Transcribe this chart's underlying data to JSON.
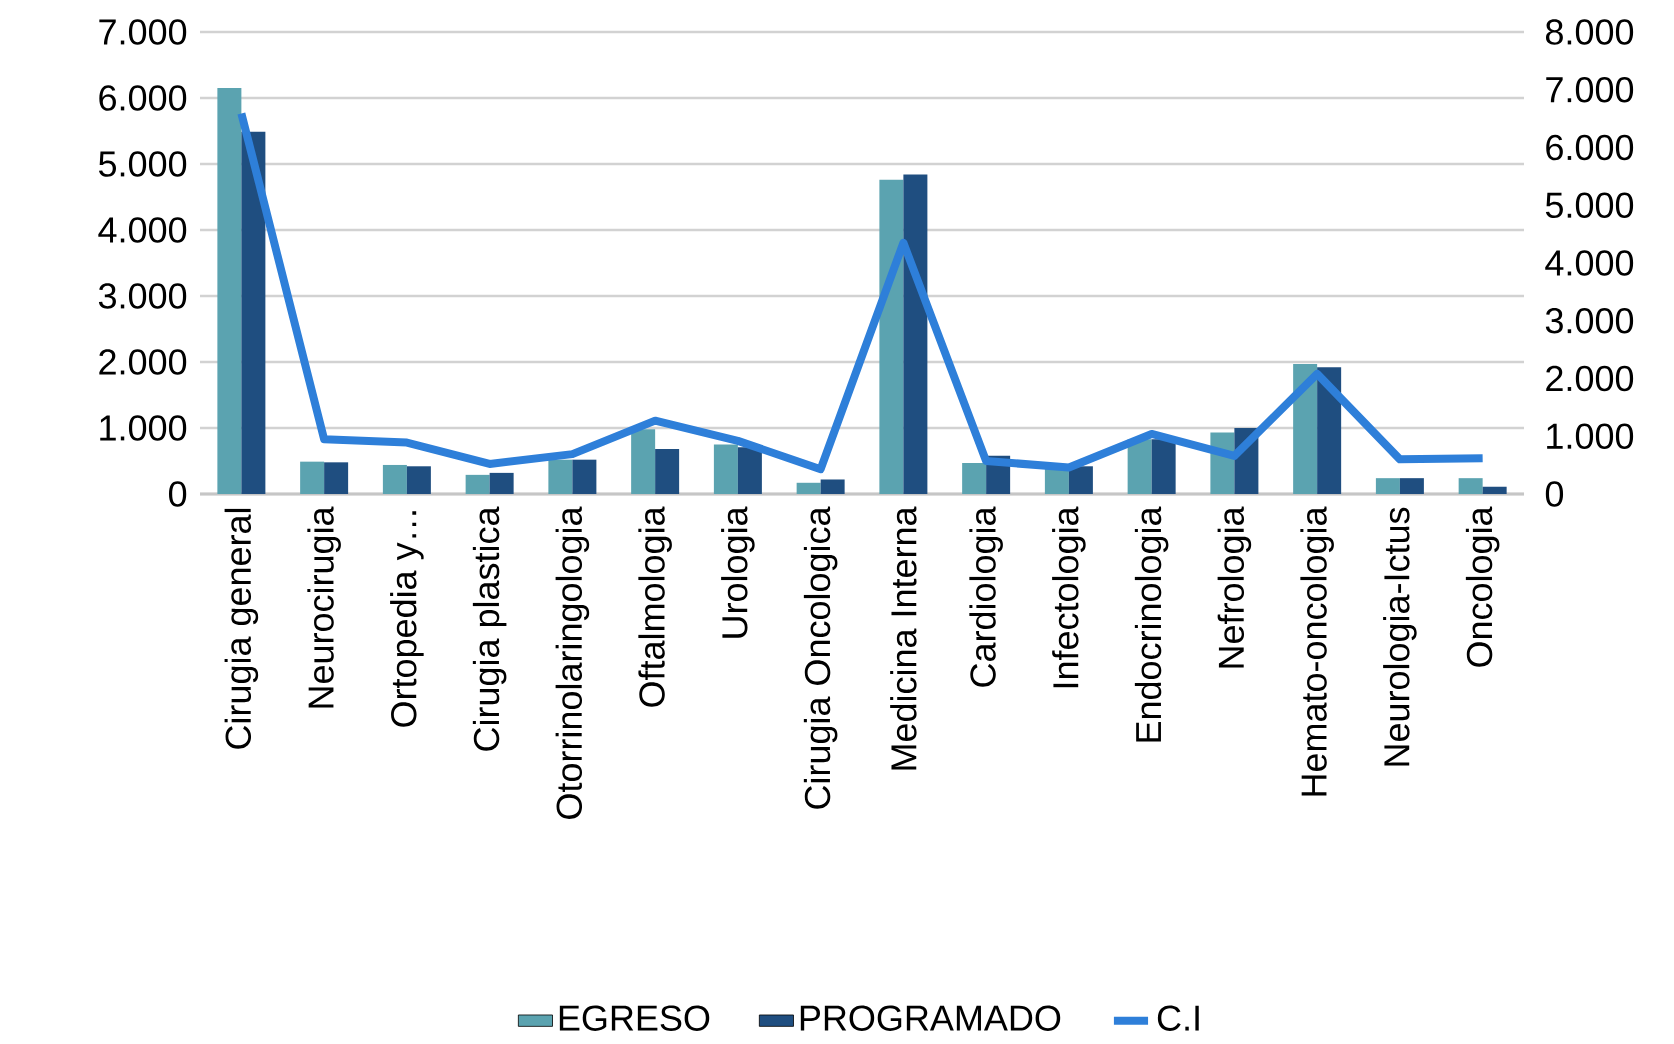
{
  "chart_data": {
    "type": "bar",
    "categories": [
      "Cirugia general",
      "Neurocirugia",
      "Ortopedia y…",
      "Cirugia plastica",
      "Otorrinolaringologia",
      "Oftalmologia",
      "Urologia",
      "Cirugia Oncologica",
      "Medicina Interna",
      "Cardiologia",
      "Infectologia",
      "Endocrinologia",
      "Nefrologia",
      "Hemato-oncologia",
      "Neurologia-Ictus",
      "Oncologia"
    ],
    "series": [
      {
        "name": "EGRESO",
        "color": "#5ba3b0",
        "values": [
          6150,
          490,
          440,
          290,
          520,
          980,
          750,
          170,
          4760,
          470,
          420,
          830,
          930,
          1970,
          240,
          240
        ]
      },
      {
        "name": "PROGRAMADO",
        "color": "#1f4e80",
        "values": [
          5490,
          480,
          420,
          320,
          520,
          680,
          710,
          220,
          4840,
          580,
          420,
          830,
          1000,
          1920,
          240,
          110
        ]
      },
      {
        "name": "C.I",
        "type": "line",
        "axis": "y2",
        "color": "#2e7fd9",
        "values": [
          6590,
          950,
          890,
          520,
          690,
          1270,
          920,
          430,
          4350,
          570,
          460,
          1040,
          660,
          2080,
          600,
          620
        ]
      }
    ],
    "ylim": [
      0,
      7000
    ],
    "yticks": [
      {
        "value": 0,
        "label": "0"
      },
      {
        "value": 1000,
        "label": "1.000"
      },
      {
        "value": 2000,
        "label": "2.000"
      },
      {
        "value": 3000,
        "label": "3.000"
      },
      {
        "value": 4000,
        "label": "4.000"
      },
      {
        "value": 5000,
        "label": "5.000"
      },
      {
        "value": 6000,
        "label": "6.000"
      },
      {
        "value": 7000,
        "label": "7.000"
      }
    ],
    "y2lim": [
      0,
      8000
    ],
    "y2ticks": [
      {
        "value": 0,
        "label": "0"
      },
      {
        "value": 1000,
        "label": "1.000"
      },
      {
        "value": 2000,
        "label": "2.000"
      },
      {
        "value": 3000,
        "label": "3.000"
      },
      {
        "value": 4000,
        "label": "4.000"
      },
      {
        "value": 5000,
        "label": "5.000"
      },
      {
        "value": 6000,
        "label": "6.000"
      },
      {
        "value": 7000,
        "label": "7.000"
      },
      {
        "value": 8000,
        "label": "8.000"
      }
    ],
    "grid": "y",
    "legend": "bottom"
  }
}
